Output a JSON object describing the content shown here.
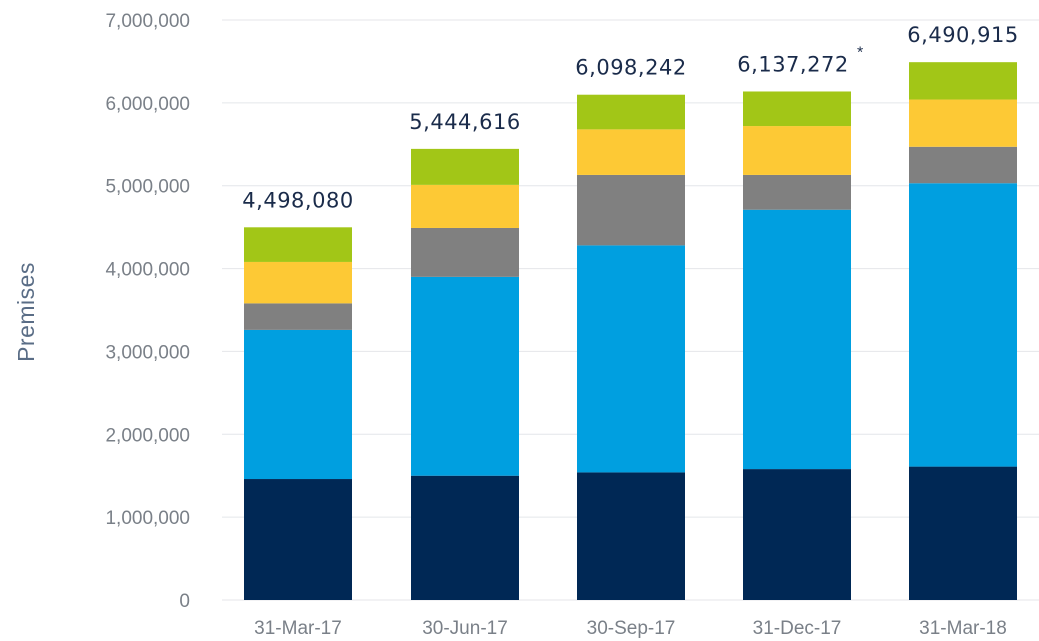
{
  "chart_data": {
    "type": "bar",
    "stacked": true,
    "title": "",
    "xlabel": "",
    "ylabel": "Premises",
    "ylim": [
      0,
      7000000
    ],
    "yticks": [
      0,
      1000000,
      2000000,
      3000000,
      4000000,
      5000000,
      6000000,
      7000000
    ],
    "ytick_labels": [
      "0",
      "1,000,000",
      "2,000,000",
      "3,000,000",
      "4,000,000",
      "5,000,000",
      "6,000,000",
      "7,000,000"
    ],
    "grid": true,
    "legend": "none",
    "categories": [
      "31-Mar-17",
      "30-Jun-17",
      "30-Sep-17",
      "31-Dec-17",
      "31-Mar-18"
    ],
    "totals": [
      4498080,
      5444616,
      6098242,
      6137272,
      6490915
    ],
    "total_labels": [
      "4,498,080",
      "5,444,616",
      "6,098,242",
      "6,137,272",
      "6,490,915"
    ],
    "total_notes": [
      "",
      "",
      "",
      "*",
      ""
    ],
    "series": [
      {
        "color": "#002855",
        "values": [
          1460000,
          1500000,
          1540000,
          1580000,
          1610000
        ]
      },
      {
        "color": "#009fe0",
        "values": [
          1800000,
          2400000,
          2740000,
          3130000,
          3420000
        ]
      },
      {
        "color": "#808080",
        "values": [
          320000,
          590000,
          850000,
          420000,
          440000
        ]
      },
      {
        "color": "#fdc935",
        "values": [
          500000,
          520000,
          550000,
          590000,
          570000
        ]
      },
      {
        "color": "#a2c617",
        "values": [
          418080,
          434616,
          418242,
          417272,
          450915
        ]
      }
    ]
  }
}
